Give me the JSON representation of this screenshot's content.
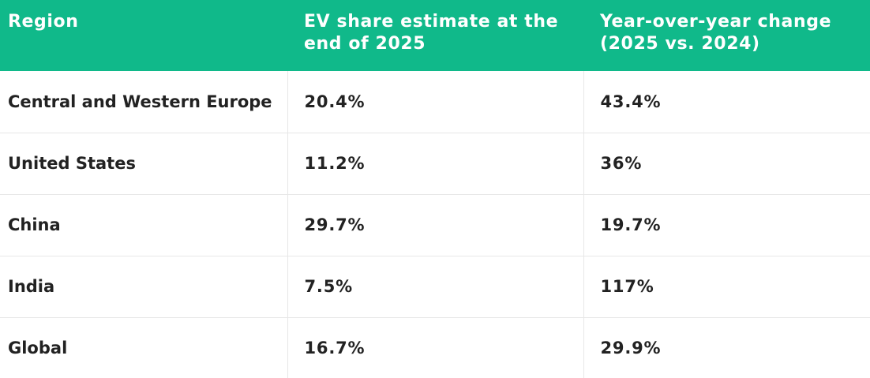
{
  "table": {
    "headers": [
      "Region",
      "EV share estimate at the end of 2025",
      "Year-over-year change (2025 vs. 2024)"
    ],
    "rows": [
      [
        "Central and Western Europe",
        "20.4%",
        "43.4%"
      ],
      [
        "United States",
        "11.2%",
        "36%"
      ],
      [
        "China",
        "29.7%",
        "19.7%"
      ],
      [
        "India",
        "7.5%",
        "117%"
      ],
      [
        "Global",
        "16.7%",
        "29.9%"
      ]
    ]
  },
  "colors": {
    "header_bg": "#10b98a",
    "header_text": "#ffffff",
    "cell_text": "#222222",
    "grid": "#e7e7e7"
  }
}
